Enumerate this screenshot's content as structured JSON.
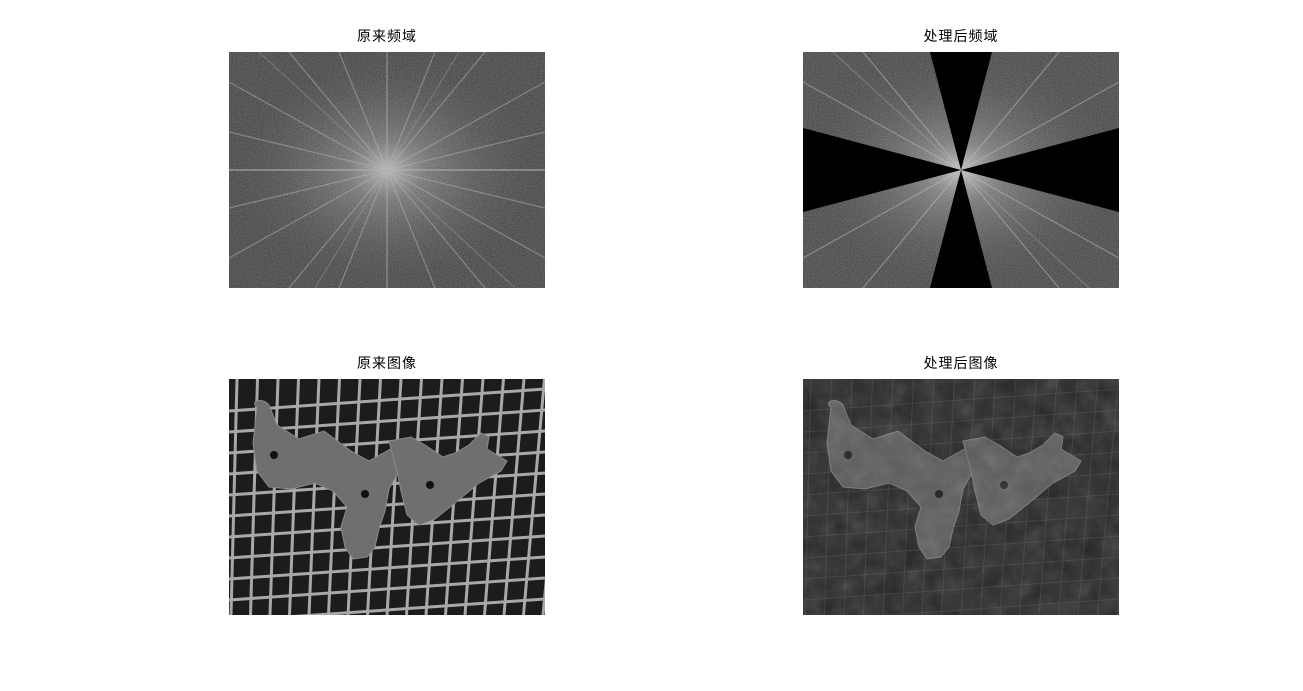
{
  "figures": [
    {
      "id": "orig-spectrum",
      "title": "原来频域"
    },
    {
      "id": "proc-spectrum",
      "title": "处理后频域"
    },
    {
      "id": "orig-image",
      "title": "原来图像"
    },
    {
      "id": "proc-image",
      "title": "处理后图像"
    }
  ],
  "colors": {
    "spectrum_bg": "#3c3c3c",
    "image_bg": "#1c1c1c",
    "grid_line": "#a8a8a8",
    "part_fill": "#6e6e6e",
    "mask": "#000000"
  }
}
